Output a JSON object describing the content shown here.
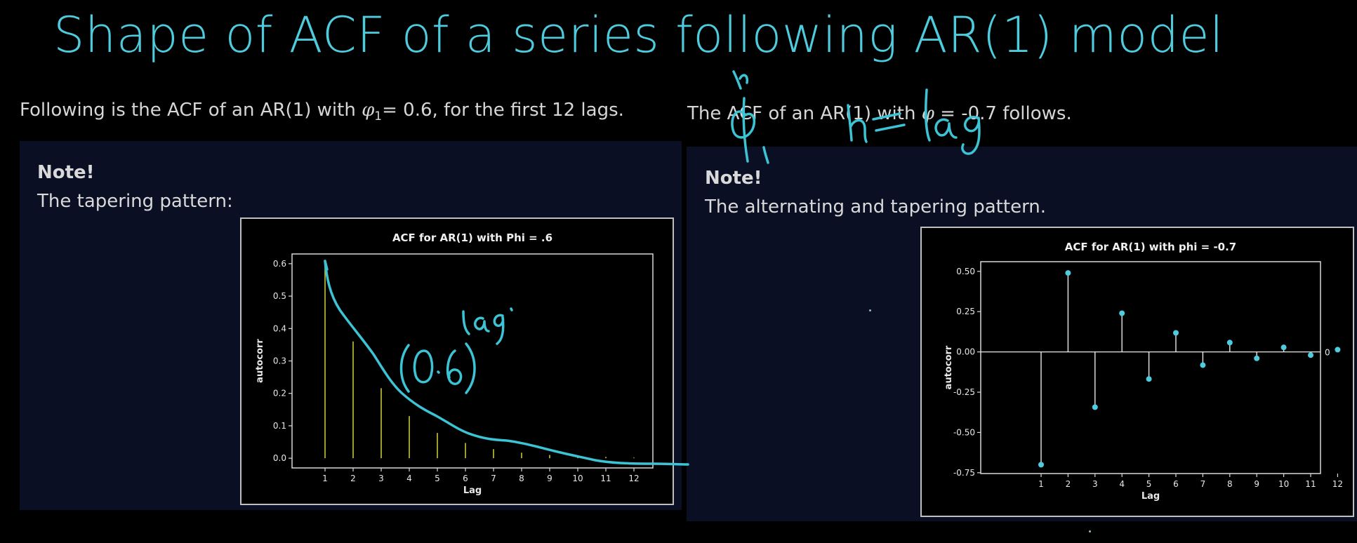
{
  "title": "Shape of ACF of a series following AR(1) model",
  "left": {
    "intro_pre": "Following is the ACF of an AR(1) with ",
    "intro_phi": "φ",
    "intro_sub": "1",
    "intro_post": "= 0.6, for the first 12 lags.",
    "note_head": "Note!",
    "note_text": "The tapering pattern:"
  },
  "right": {
    "intro_pre": "The ACF of an AR(1) with ",
    "intro_phi": "φ",
    "intro_post": " = -0.7 follows.",
    "note_head": "Note!",
    "note_text": "The alternating and tapering pattern."
  },
  "annotations": {
    "formula_base": "(0.6)",
    "formula_exp": "Lag",
    "phi_h": "φ",
    "phi_h_sup": "h",
    "phi_h_sub": "1",
    "h_eq": "h = lag"
  },
  "colors": {
    "title": "#4ecbdc",
    "ink": "#3cc3d4",
    "note_bg": "#0a0f24",
    "spike_yellow": "#c8c832",
    "point": "#4ecbdc"
  },
  "chart_data": [
    {
      "type": "bar",
      "title": "ACF for AR(1) with Phi = .6",
      "xlabel": "Lag",
      "ylabel": "autocorr",
      "categories": [
        "1",
        "2",
        "3",
        "4",
        "5",
        "6",
        "7",
        "8",
        "9",
        "10",
        "11",
        "12"
      ],
      "values": [
        0.6,
        0.36,
        0.216,
        0.13,
        0.078,
        0.047,
        0.028,
        0.017,
        0.01,
        0.006,
        0.004,
        0.002
      ],
      "yticks": [
        "0.0",
        "0.1",
        "0.2",
        "0.3",
        "0.4",
        "0.5",
        "0.6"
      ],
      "ylim": [
        -0.03,
        0.63
      ]
    },
    {
      "type": "scatter",
      "title": "ACF for AR(1) with phi = -0.7",
      "xlabel": "Lag",
      "ylabel": "autocorr",
      "categories": [
        "1",
        "2",
        "3",
        "4",
        "5",
        "6",
        "7",
        "8",
        "9",
        "10",
        "11",
        "12"
      ],
      "values": [
        -0.7,
        0.49,
        -0.343,
        0.24,
        -0.168,
        0.118,
        -0.082,
        0.058,
        -0.04,
        0.028,
        -0.02,
        0.014
      ],
      "yticks": [
        "-0.75",
        "-0.50",
        "-0.25",
        "0.00",
        "0.25",
        "0.50"
      ],
      "ylim": [
        -0.755,
        0.56
      ],
      "zero_label": "0"
    }
  ]
}
